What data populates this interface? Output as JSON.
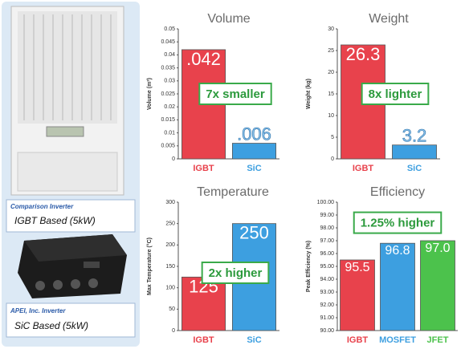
{
  "captions": [
    {
      "line1": "Comparison Inverter",
      "line2": "IGBT Based (5kW)"
    },
    {
      "line1": "APEI, Inc. Inverter",
      "line2": "SiC Based (5kW)"
    }
  ],
  "chart_data": [
    {
      "type": "bar",
      "title": "Volume",
      "y_label": "Volume (m³)",
      "annotation": "7x smaller",
      "categories": [
        "IGBT",
        "SiC"
      ],
      "values": [
        0.042,
        0.006
      ],
      "value_labels": [
        ".042",
        ".006"
      ],
      "colors": [
        "#e8424c",
        "#3d9fe0"
      ],
      "ylim": [
        0,
        0.05
      ],
      "yticks": [
        0,
        0.005,
        0.01,
        0.015,
        0.02,
        0.025,
        0.03,
        0.035,
        0.04,
        0.045,
        0.05
      ]
    },
    {
      "type": "bar",
      "title": "Weight",
      "y_label": "Weight (kg)",
      "annotation": "8x lighter",
      "categories": [
        "IGBT",
        "SiC"
      ],
      "values": [
        26.3,
        3.2
      ],
      "colors": [
        "#e8424c",
        "#3d9fe0"
      ],
      "ylim": [
        0,
        30
      ],
      "yticks": [
        0,
        5,
        10,
        15,
        20,
        25,
        30
      ]
    },
    {
      "type": "bar",
      "title": "Temperature",
      "y_label": "Max Temperature (°C)",
      "annotation": "2x higher",
      "categories": [
        "IGBT",
        "SiC"
      ],
      "values": [
        125,
        250
      ],
      "colors": [
        "#e8424c",
        "#3d9fe0"
      ],
      "ylim": [
        0,
        300
      ],
      "yticks": [
        0,
        50,
        100,
        150,
        200,
        250,
        300
      ]
    },
    {
      "type": "bar",
      "title": "Efficiency",
      "y_label": "Peak Efficiency (%)",
      "annotation": "1.25% higher",
      "categories": [
        "IGBT",
        "MOSFET",
        "JFET"
      ],
      "values": [
        95.5,
        96.8,
        97.0
      ],
      "value_labels": [
        "95.5",
        "96.8",
        "97.0"
      ],
      "colors": [
        "#e8424c",
        "#3d9fe0",
        "#4cc24c"
      ],
      "ylim": [
        90,
        100
      ],
      "yticks": [
        {
          "value": 90,
          "label": "90.00"
        },
        {
          "value": 91,
          "label": "91.00"
        },
        {
          "value": 92,
          "label": "92.00"
        },
        {
          "value": 93,
          "label": "93.00"
        },
        {
          "value": 94,
          "label": "94.00"
        },
        {
          "value": 95,
          "label": "95.00"
        },
        {
          "value": 96,
          "label": "96.00"
        },
        {
          "value": 97,
          "label": "97.00"
        },
        {
          "value": 98,
          "label": "98.00"
        },
        {
          "value": 99,
          "label": "99.00"
        },
        {
          "value": 100,
          "label": "100.00"
        }
      ]
    }
  ]
}
